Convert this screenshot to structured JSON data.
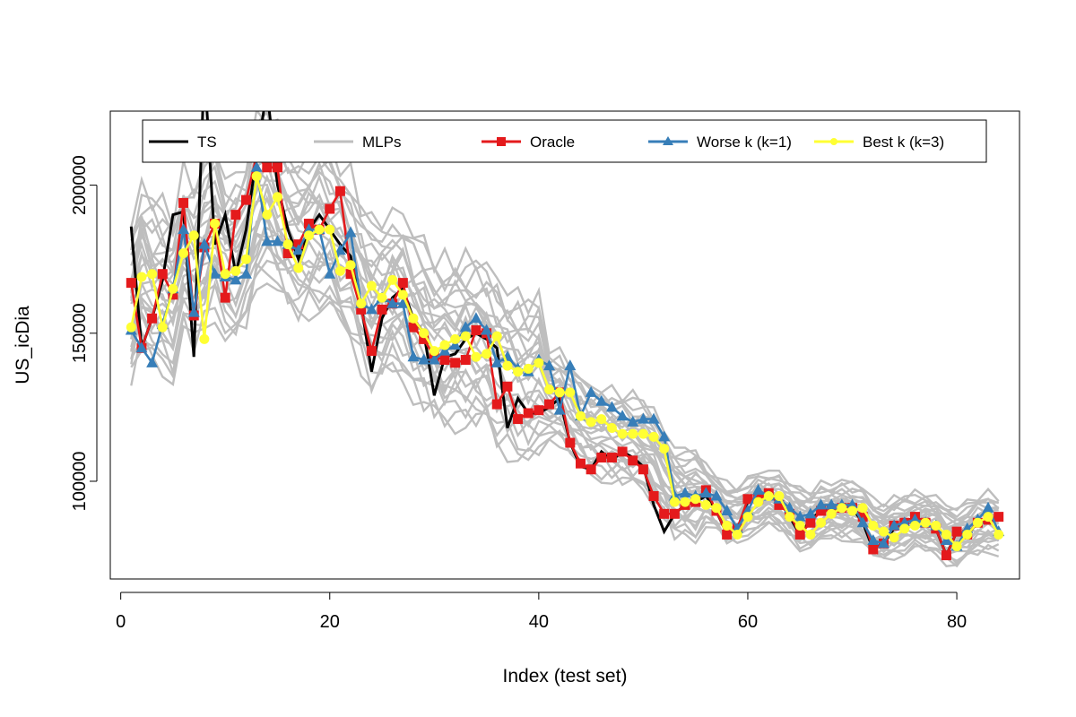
{
  "chart_data": {
    "type": "line",
    "title": "",
    "xlabel": "Index (test set)",
    "ylabel": "US_icDia",
    "xlim": [
      -1,
      86
    ],
    "ylim": [
      67000,
      225000
    ],
    "x_ticks": [
      0,
      20,
      40,
      60,
      80
    ],
    "x_tick_labels": [
      "0",
      "20",
      "40",
      "60",
      "80"
    ],
    "y_ticks": [
      100000,
      150000,
      200000
    ],
    "y_tick_labels": [
      "100000",
      "150000",
      "200000"
    ],
    "grid": false,
    "legend_position": "top",
    "x": [
      1,
      2,
      3,
      4,
      5,
      6,
      7,
      8,
      9,
      10,
      11,
      12,
      13,
      14,
      15,
      16,
      17,
      18,
      19,
      20,
      21,
      22,
      23,
      24,
      25,
      26,
      27,
      28,
      29,
      30,
      31,
      32,
      33,
      34,
      35,
      36,
      37,
      38,
      39,
      40,
      41,
      42,
      43,
      44,
      45,
      46,
      47,
      48,
      49,
      50,
      51,
      52,
      53,
      54,
      55,
      56,
      57,
      58,
      59,
      60,
      61,
      62,
      63,
      64,
      65,
      66,
      67,
      68,
      69,
      70,
      71,
      72,
      73,
      74,
      75,
      76,
      77,
      78,
      79,
      80,
      81,
      82,
      83,
      84
    ],
    "series": [
      {
        "name": "TS",
        "color": "#000000",
        "marker": "none",
        "values": [
          186000,
          145000,
          155000,
          168000,
          190000,
          191000,
          142000,
          240000,
          180000,
          190000,
          170000,
          185000,
          210000,
          232000,
          200000,
          185000,
          175000,
          185000,
          190000,
          185000,
          180000,
          176000,
          160000,
          137000,
          155000,
          162000,
          165000,
          155000,
          150000,
          129000,
          142000,
          143000,
          148000,
          150000,
          148000,
          145000,
          118000,
          128000,
          123000,
          123000,
          125000,
          128000,
          113000,
          105000,
          104000,
          110000,
          107000,
          110000,
          108000,
          105000,
          92000,
          83000,
          89000,
          92000,
          93000,
          95000,
          90000,
          82000,
          84000,
          93000,
          94000,
          96000,
          94000,
          88000,
          82000,
          87000,
          90000,
          91000,
          90000,
          91000,
          86000,
          77000,
          79000,
          84000,
          86000,
          88000,
          86000,
          84000,
          75000,
          83000,
          82000,
          86000,
          87000,
          88000
        ]
      },
      {
        "name": "Oracle",
        "color": "#e41a1c",
        "marker": "square",
        "values": [
          167000,
          145000,
          155000,
          170000,
          163000,
          194000,
          156000,
          179000,
          187000,
          162000,
          190000,
          195000,
          210000,
          206000,
          206000,
          177000,
          180000,
          187000,
          185000,
          192000,
          198000,
          170000,
          158000,
          144000,
          158000,
          160000,
          167000,
          152000,
          148000,
          142000,
          141000,
          140000,
          141000,
          151000,
          150000,
          126000,
          132000,
          121000,
          123000,
          124000,
          126000,
          130000,
          113000,
          106000,
          104000,
          108000,
          108000,
          110000,
          107000,
          104000,
          95000,
          89000,
          89000,
          92000,
          93000,
          97000,
          90000,
          82000,
          84000,
          94000,
          94000,
          96000,
          92000,
          89000,
          82000,
          86000,
          90000,
          90000,
          91000,
          91000,
          88000,
          77000,
          79000,
          85000,
          86000,
          88000,
          86000,
          84000,
          75000,
          83000,
          82000,
          86000,
          87000,
          88000
        ]
      },
      {
        "name": "Worse k (k=1)",
        "color": "#377eb8",
        "marker": "triangle",
        "values": [
          151000,
          145000,
          140000,
          153000,
          165000,
          185000,
          157000,
          180000,
          170000,
          169000,
          168000,
          170000,
          206000,
          181000,
          181000,
          180000,
          178000,
          185000,
          185000,
          170000,
          178000,
          184000,
          160000,
          158000,
          162000,
          160000,
          160000,
          142000,
          141000,
          141000,
          144000,
          146000,
          152000,
          155000,
          151000,
          140000,
          142000,
          138000,
          137000,
          141000,
          139000,
          124000,
          139000,
          122000,
          130000,
          127000,
          125000,
          122000,
          120000,
          121000,
          121000,
          115000,
          95000,
          96000,
          95000,
          96000,
          95000,
          90000,
          84000,
          90000,
          97000,
          95000,
          94000,
          91000,
          88000,
          89000,
          92000,
          92000,
          92000,
          92000,
          86000,
          80000,
          79000,
          85000,
          86000,
          87000,
          86000,
          85000,
          80000,
          78000,
          84000,
          87000,
          91000,
          83000
        ]
      },
      {
        "name": "Best k (k=3)",
        "color": "#ffff33",
        "marker": "circle",
        "values": [
          152000,
          169000,
          170000,
          152000,
          165000,
          177000,
          183000,
          148000,
          187000,
          170000,
          171000,
          175000,
          203000,
          190000,
          196000,
          180000,
          172000,
          183000,
          185000,
          185000,
          171000,
          173000,
          160000,
          166000,
          162000,
          168000,
          163000,
          155000,
          150000,
          144000,
          146000,
          148000,
          149000,
          142000,
          143000,
          149000,
          139000,
          137000,
          138000,
          140000,
          131000,
          130000,
          130000,
          122000,
          120000,
          121000,
          118000,
          116000,
          116000,
          116000,
          115000,
          111000,
          93000,
          93000,
          94000,
          92000,
          91000,
          85000,
          82000,
          88000,
          93000,
          95000,
          95000,
          88000,
          85000,
          82000,
          86000,
          89000,
          91000,
          90000,
          91000,
          85000,
          83000,
          81000,
          84000,
          85000,
          86000,
          85000,
          82000,
          78000,
          82000,
          86000,
          88000,
          82000
        ]
      },
      {
        "name": "MLPs",
        "color": "#bebebe",
        "marker": "none",
        "group": true,
        "values": [
          [
            158000,
            172000,
            167000,
            165000,
            162000,
            176000,
            172000,
            178000,
            184000,
            175000,
            174000,
            180000,
            193000,
            197000,
            190000,
            185000,
            182000,
            184000,
            186000,
            184000,
            179000,
            175000,
            166000,
            159000,
            160000,
            163000,
            162000,
            156000,
            152000,
            147000,
            146000,
            146000,
            147000,
            146000,
            145000,
            140000,
            137000,
            134000,
            133000,
            132000,
            130000,
            128000,
            124000,
            119000,
            116000,
            116000,
            115000,
            114000,
            113000,
            112000,
            108000,
            102000,
            96000,
            95000,
            95000,
            95000,
            93000,
            89000,
            88000,
            91000,
            93000,
            94000,
            93000,
            90000,
            87000,
            87000,
            89000,
            90000,
            90000,
            90000,
            88000,
            84000,
            83000,
            84000,
            85000,
            86000,
            86000,
            85000,
            82000,
            81000,
            83000,
            85000,
            86000,
            85000
          ]
        ],
        "offsets": [
          0,
          -18000,
          14000,
          -9000,
          24000,
          -26000,
          6000,
          20000,
          -5000,
          -14000,
          11000,
          3000,
          -21000,
          17000,
          -11000,
          8000,
          28000,
          -2000,
          22000,
          -16000,
          13000,
          -7000,
          4000,
          -24000,
          -12000,
          9000
        ]
      }
    ]
  }
}
